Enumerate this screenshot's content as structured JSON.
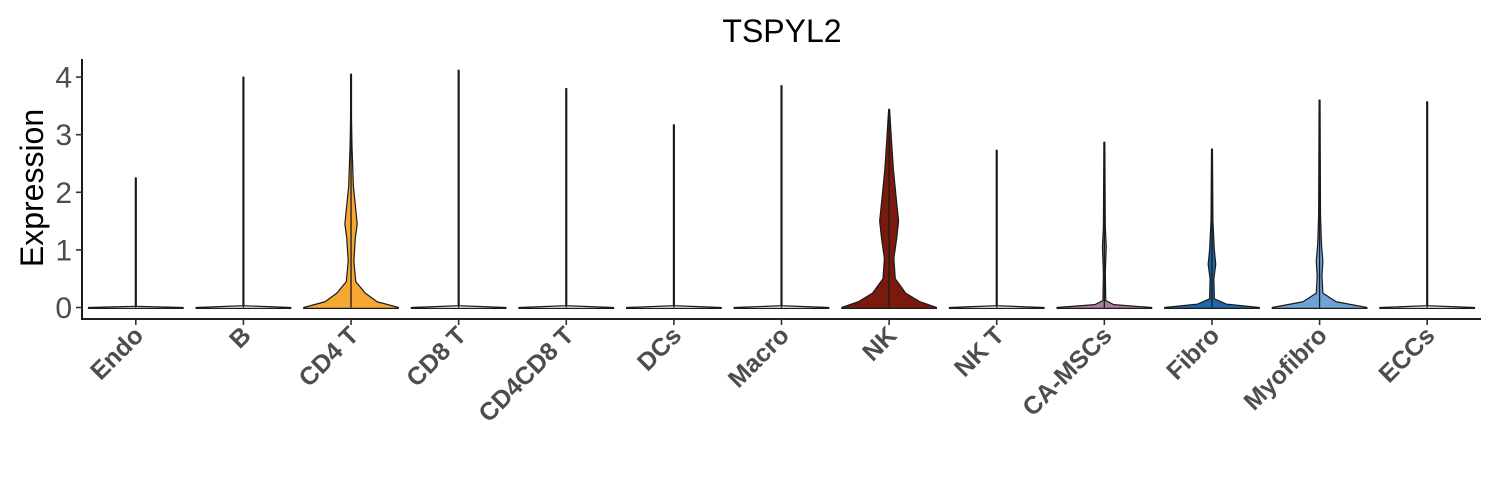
{
  "chart_data": {
    "type": "violin",
    "title": "TSPYL2",
    "ylabel": "Expression",
    "xlabel": "",
    "ylim": [
      -0.2,
      4.3
    ],
    "yticks": [
      0,
      1,
      2,
      3,
      4
    ],
    "categories": [
      "Endo",
      "B",
      "CD4 T",
      "CD8 T",
      "CD4CD8 T",
      "DCs",
      "Macro",
      "NK",
      "NK T",
      "CA-MSCs",
      "Fibro",
      "Myofibro",
      "ECCs"
    ],
    "max_values": [
      2.25,
      4.0,
      4.05,
      4.12,
      3.8,
      3.17,
      3.85,
      3.44,
      2.73,
      2.87,
      2.75,
      3.6,
      3.57
    ],
    "fill_colors": [
      "#ffffff",
      "#ffffff",
      "#F6A835",
      "#ffffff",
      "#ffffff",
      "#ffffff",
      "#ffffff",
      "#7A1A0C",
      "#ffffff",
      "#B07A9E",
      "#1F66AA",
      "#6FA3D8",
      "#ffffff"
    ],
    "density_profiles": [
      [
        [
          0.0,
          1.0
        ],
        [
          0.02,
          0.01
        ],
        [
          2.25,
          0.01
        ]
      ],
      [
        [
          0.0,
          1.0
        ],
        [
          0.03,
          0.01
        ],
        [
          4.0,
          0.01
        ]
      ],
      [
        [
          0.0,
          1.0
        ],
        [
          0.1,
          0.55
        ],
        [
          0.25,
          0.3
        ],
        [
          0.45,
          0.1
        ],
        [
          0.8,
          0.06
        ],
        [
          1.2,
          0.09
        ],
        [
          1.45,
          0.13
        ],
        [
          1.7,
          0.1
        ],
        [
          2.1,
          0.05
        ],
        [
          2.8,
          0.02
        ],
        [
          3.3,
          0.01
        ],
        [
          4.05,
          0.01
        ]
      ],
      [
        [
          0.0,
          1.0
        ],
        [
          0.03,
          0.01
        ],
        [
          4.12,
          0.01
        ]
      ],
      [
        [
          0.0,
          1.0
        ],
        [
          0.03,
          0.01
        ],
        [
          3.8,
          0.01
        ]
      ],
      [
        [
          0.0,
          1.0
        ],
        [
          0.03,
          0.01
        ],
        [
          3.17,
          0.01
        ]
      ],
      [
        [
          0.0,
          1.0
        ],
        [
          0.03,
          0.01
        ],
        [
          3.85,
          0.01
        ]
      ],
      [
        [
          0.0,
          1.0
        ],
        [
          0.1,
          0.65
        ],
        [
          0.25,
          0.35
        ],
        [
          0.5,
          0.13
        ],
        [
          0.85,
          0.1
        ],
        [
          1.2,
          0.16
        ],
        [
          1.5,
          0.2
        ],
        [
          1.9,
          0.15
        ],
        [
          2.4,
          0.09
        ],
        [
          2.9,
          0.05
        ],
        [
          3.44,
          0.01
        ]
      ],
      [
        [
          0.0,
          1.0
        ],
        [
          0.03,
          0.01
        ],
        [
          2.73,
          0.01
        ]
      ],
      [
        [
          0.0,
          1.0
        ],
        [
          0.05,
          0.2
        ],
        [
          0.12,
          0.03
        ],
        [
          0.6,
          0.02
        ],
        [
          1.05,
          0.04
        ],
        [
          1.4,
          0.02
        ],
        [
          2.87,
          0.01
        ]
      ],
      [
        [
          0.0,
          1.0
        ],
        [
          0.06,
          0.3
        ],
        [
          0.15,
          0.05
        ],
        [
          0.5,
          0.04
        ],
        [
          0.75,
          0.08
        ],
        [
          1.0,
          0.05
        ],
        [
          1.5,
          0.02
        ],
        [
          2.75,
          0.01
        ]
      ],
      [
        [
          0.0,
          1.0
        ],
        [
          0.1,
          0.35
        ],
        [
          0.25,
          0.07
        ],
        [
          0.55,
          0.05
        ],
        [
          0.8,
          0.07
        ],
        [
          1.1,
          0.04
        ],
        [
          1.6,
          0.02
        ],
        [
          3.6,
          0.01
        ]
      ],
      [
        [
          0.0,
          1.0
        ],
        [
          0.03,
          0.01
        ],
        [
          3.57,
          0.01
        ]
      ]
    ]
  }
}
